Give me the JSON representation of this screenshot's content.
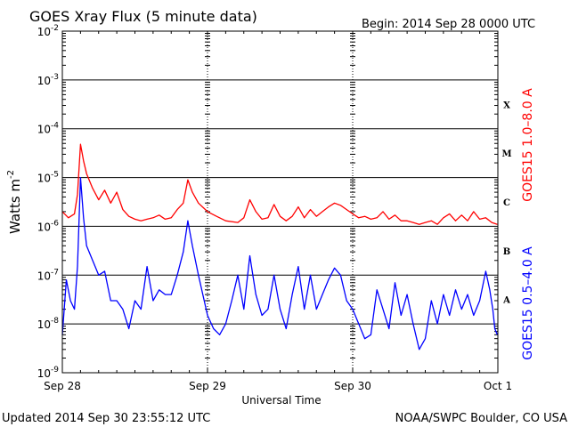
{
  "header": {
    "title": "GOES Xray Flux (5 minute data)",
    "begin": "Begin:  2014 Sep 28 0000 UTC"
  },
  "footer": {
    "updated": "Updated 2014 Sep 30 23:55:12 UTC",
    "credit": "NOAA/SWPC Boulder, CO USA"
  },
  "colors": {
    "long": "#ff0000",
    "short": "#0000ff",
    "axes": "#000000",
    "grid": "#000000"
  },
  "chart_data": {
    "type": "line",
    "title": "GOES Xray Flux (5 minute data)",
    "xlabel": "Universal Time",
    "ylabel": "Watts m",
    "ylabel_sup": "-2",
    "yscale": "log",
    "ylim": [
      1e-09,
      0.01
    ],
    "xlim": [
      "2014-09-28 00:00",
      "2014-10-01 00:00"
    ],
    "x_ticks": [
      {
        "x": "2014-09-28",
        "label": "Sep 28"
      },
      {
        "x": "2014-09-29",
        "label": "Sep 29"
      },
      {
        "x": "2014-09-30",
        "label": "Sep 30"
      },
      {
        "x": "2014-10-01",
        "label": "Oct 1"
      }
    ],
    "y_ticks": [
      {
        "exp": -2
      },
      {
        "exp": -3
      },
      {
        "exp": -4
      },
      {
        "exp": -5
      },
      {
        "exp": -6
      },
      {
        "exp": -7
      },
      {
        "exp": -8
      },
      {
        "exp": -9
      }
    ],
    "y_tick_base": "10",
    "flare_classes": [
      {
        "label": "X",
        "level": 0.0001
      },
      {
        "label": "M",
        "level": 1e-05
      },
      {
        "label": "C",
        "level": 1e-06
      },
      {
        "label": "B",
        "level": 1e-07
      },
      {
        "label": "A",
        "level": 1e-08
      }
    ],
    "grid": true,
    "series": [
      {
        "name": "GOES15 1.0–8.0 A",
        "color": "#ff0000",
        "points": [
          [
            "2014-09-28 00:00",
            2e-06
          ],
          [
            "2014-09-28 01:00",
            1.5e-06
          ],
          [
            "2014-09-28 02:00",
            1.8e-06
          ],
          [
            "2014-09-28 02:30",
            4.5e-06
          ],
          [
            "2014-09-28 03:00",
            4.8e-05
          ],
          [
            "2014-09-28 03:30",
            2.2e-05
          ],
          [
            "2014-09-28 04:00",
            1.2e-05
          ],
          [
            "2014-09-28 05:00",
            6e-06
          ],
          [
            "2014-09-28 06:00",
            3.5e-06
          ],
          [
            "2014-09-28 07:00",
            5.5e-06
          ],
          [
            "2014-09-28 08:00",
            3e-06
          ],
          [
            "2014-09-28 09:00",
            5e-06
          ],
          [
            "2014-09-28 10:00",
            2.2e-06
          ],
          [
            "2014-09-28 11:00",
            1.6e-06
          ],
          [
            "2014-09-28 12:00",
            1.4e-06
          ],
          [
            "2014-09-28 13:00",
            1.3e-06
          ],
          [
            "2014-09-28 14:00",
            1.4e-06
          ],
          [
            "2014-09-28 15:00",
            1.5e-06
          ],
          [
            "2014-09-28 16:00",
            1.7e-06
          ],
          [
            "2014-09-28 17:00",
            1.4e-06
          ],
          [
            "2014-09-28 18:00",
            1.5e-06
          ],
          [
            "2014-09-28 19:00",
            2.2e-06
          ],
          [
            "2014-09-28 20:00",
            3e-06
          ],
          [
            "2014-09-28 20:45",
            9e-06
          ],
          [
            "2014-09-28 21:30",
            5e-06
          ],
          [
            "2014-09-28 22:30",
            3e-06
          ],
          [
            "2014-09-29 00:00",
            2e-06
          ],
          [
            "2014-09-29 01:30",
            1.6e-06
          ],
          [
            "2014-09-29 03:00",
            1.3e-06
          ],
          [
            "2014-09-29 05:00",
            1.2e-06
          ],
          [
            "2014-09-29 06:00",
            1.5e-06
          ],
          [
            "2014-09-29 07:00",
            3.5e-06
          ],
          [
            "2014-09-29 08:00",
            2e-06
          ],
          [
            "2014-09-29 09:00",
            1.4e-06
          ],
          [
            "2014-09-29 10:00",
            1.5e-06
          ],
          [
            "2014-09-29 11:00",
            2.8e-06
          ],
          [
            "2014-09-29 12:00",
            1.6e-06
          ],
          [
            "2014-09-29 13:00",
            1.3e-06
          ],
          [
            "2014-09-29 14:00",
            1.6e-06
          ],
          [
            "2014-09-29 15:00",
            2.5e-06
          ],
          [
            "2014-09-29 16:00",
            1.5e-06
          ],
          [
            "2014-09-29 17:00",
            2.2e-06
          ],
          [
            "2014-09-29 18:00",
            1.6e-06
          ],
          [
            "2014-09-29 19:00",
            2e-06
          ],
          [
            "2014-09-29 20:00",
            2.5e-06
          ],
          [
            "2014-09-29 21:00",
            3e-06
          ],
          [
            "2014-09-29 22:00",
            2.7e-06
          ],
          [
            "2014-09-29 23:00",
            2.2e-06
          ],
          [
            "2014-09-30 00:00",
            1.8e-06
          ],
          [
            "2014-09-30 01:00",
            1.5e-06
          ],
          [
            "2014-09-30 02:00",
            1.6e-06
          ],
          [
            "2014-09-30 03:00",
            1.4e-06
          ],
          [
            "2014-09-30 04:00",
            1.5e-06
          ],
          [
            "2014-09-30 05:00",
            2e-06
          ],
          [
            "2014-09-30 06:00",
            1.4e-06
          ],
          [
            "2014-09-30 07:00",
            1.7e-06
          ],
          [
            "2014-09-30 08:00",
            1.3e-06
          ],
          [
            "2014-09-30 09:00",
            1.3e-06
          ],
          [
            "2014-09-30 10:00",
            1.2e-06
          ],
          [
            "2014-09-30 11:00",
            1.1e-06
          ],
          [
            "2014-09-30 12:00",
            1.2e-06
          ],
          [
            "2014-09-30 13:00",
            1.3e-06
          ],
          [
            "2014-09-30 14:00",
            1.1e-06
          ],
          [
            "2014-09-30 15:00",
            1.5e-06
          ],
          [
            "2014-09-30 16:00",
            1.8e-06
          ],
          [
            "2014-09-30 17:00",
            1.3e-06
          ],
          [
            "2014-09-30 18:00",
            1.7e-06
          ],
          [
            "2014-09-30 19:00",
            1.3e-06
          ],
          [
            "2014-09-30 20:00",
            2e-06
          ],
          [
            "2014-09-30 21:00",
            1.4e-06
          ],
          [
            "2014-09-30 22:00",
            1.5e-06
          ],
          [
            "2014-09-30 23:00",
            1.2e-06
          ],
          [
            "2014-09-30 23:55",
            1.1e-06
          ]
        ]
      },
      {
        "name": "GOES15 0.5–4.0 A",
        "color": "#0000ff",
        "points": [
          [
            "2014-09-28 00:00",
            6e-09
          ],
          [
            "2014-09-28 00:40",
            8e-08
          ],
          [
            "2014-09-28 01:20",
            3e-08
          ],
          [
            "2014-09-28 02:00",
            2e-08
          ],
          [
            "2014-09-28 02:30",
            1.5e-07
          ],
          [
            "2014-09-28 03:00",
            1e-05
          ],
          [
            "2014-09-28 03:30",
            1.5e-06
          ],
          [
            "2014-09-28 04:00",
            4e-07
          ],
          [
            "2014-09-28 05:00",
            2e-07
          ],
          [
            "2014-09-28 06:00",
            1e-07
          ],
          [
            "2014-09-28 07:00",
            1.2e-07
          ],
          [
            "2014-09-28 08:00",
            3e-08
          ],
          [
            "2014-09-28 09:00",
            3e-08
          ],
          [
            "2014-09-28 10:00",
            2e-08
          ],
          [
            "2014-09-28 11:00",
            8e-09
          ],
          [
            "2014-09-28 12:00",
            3e-08
          ],
          [
            "2014-09-28 13:00",
            2e-08
          ],
          [
            "2014-09-28 14:00",
            1.5e-07
          ],
          [
            "2014-09-28 15:00",
            3e-08
          ],
          [
            "2014-09-28 16:00",
            5e-08
          ],
          [
            "2014-09-28 17:00",
            4e-08
          ],
          [
            "2014-09-28 18:00",
            4e-08
          ],
          [
            "2014-09-28 19:00",
            1e-07
          ],
          [
            "2014-09-28 20:00",
            3e-07
          ],
          [
            "2014-09-28 20:45",
            1.3e-06
          ],
          [
            "2014-09-28 21:30",
            4e-07
          ],
          [
            "2014-09-28 22:30",
            1e-07
          ],
          [
            "2014-09-29 00:00",
            1.5e-08
          ],
          [
            "2014-09-29 01:00",
            8e-09
          ],
          [
            "2014-09-29 02:00",
            6e-09
          ],
          [
            "2014-09-29 03:00",
            1e-08
          ],
          [
            "2014-09-29 04:00",
            3e-08
          ],
          [
            "2014-09-29 05:00",
            1e-07
          ],
          [
            "2014-09-29 06:00",
            2e-08
          ],
          [
            "2014-09-29 07:00",
            2.5e-07
          ],
          [
            "2014-09-29 08:00",
            4e-08
          ],
          [
            "2014-09-29 09:00",
            1.5e-08
          ],
          [
            "2014-09-29 10:00",
            2e-08
          ],
          [
            "2014-09-29 11:00",
            1e-07
          ],
          [
            "2014-09-29 12:00",
            2e-08
          ],
          [
            "2014-09-29 13:00",
            8e-09
          ],
          [
            "2014-09-29 14:00",
            4e-08
          ],
          [
            "2014-09-29 15:00",
            1.5e-07
          ],
          [
            "2014-09-29 16:00",
            2e-08
          ],
          [
            "2014-09-29 17:00",
            1e-07
          ],
          [
            "2014-09-29 18:00",
            2e-08
          ],
          [
            "2014-09-29 19:00",
            4e-08
          ],
          [
            "2014-09-29 20:00",
            8e-08
          ],
          [
            "2014-09-29 21:00",
            1.4e-07
          ],
          [
            "2014-09-29 22:00",
            1e-07
          ],
          [
            "2014-09-29 23:00",
            3e-08
          ],
          [
            "2014-09-30 00:00",
            2e-08
          ],
          [
            "2014-09-30 01:00",
            1e-08
          ],
          [
            "2014-09-30 02:00",
            5e-09
          ],
          [
            "2014-09-30 03:00",
            6e-09
          ],
          [
            "2014-09-30 04:00",
            5e-08
          ],
          [
            "2014-09-30 05:00",
            2e-08
          ],
          [
            "2014-09-30 06:00",
            8e-09
          ],
          [
            "2014-09-30 07:00",
            7e-08
          ],
          [
            "2014-09-30 08:00",
            1.5e-08
          ],
          [
            "2014-09-30 09:00",
            4e-08
          ],
          [
            "2014-09-30 10:00",
            1e-08
          ],
          [
            "2014-09-30 11:00",
            3e-09
          ],
          [
            "2014-09-30 12:00",
            5e-09
          ],
          [
            "2014-09-30 13:00",
            3e-08
          ],
          [
            "2014-09-30 14:00",
            1e-08
          ],
          [
            "2014-09-30 15:00",
            4e-08
          ],
          [
            "2014-09-30 16:00",
            1.5e-08
          ],
          [
            "2014-09-30 17:00",
            5e-08
          ],
          [
            "2014-09-30 18:00",
            2e-08
          ],
          [
            "2014-09-30 19:00",
            4e-08
          ],
          [
            "2014-09-30 20:00",
            1.5e-08
          ],
          [
            "2014-09-30 21:00",
            3e-08
          ],
          [
            "2014-09-30 22:00",
            1.2e-07
          ],
          [
            "2014-09-30 22:40",
            5e-08
          ],
          [
            "2014-09-30 23:10",
            2e-08
          ],
          [
            "2014-09-30 23:30",
            8e-09
          ],
          [
            "2014-09-30 23:55",
            6e-09
          ]
        ]
      }
    ]
  }
}
